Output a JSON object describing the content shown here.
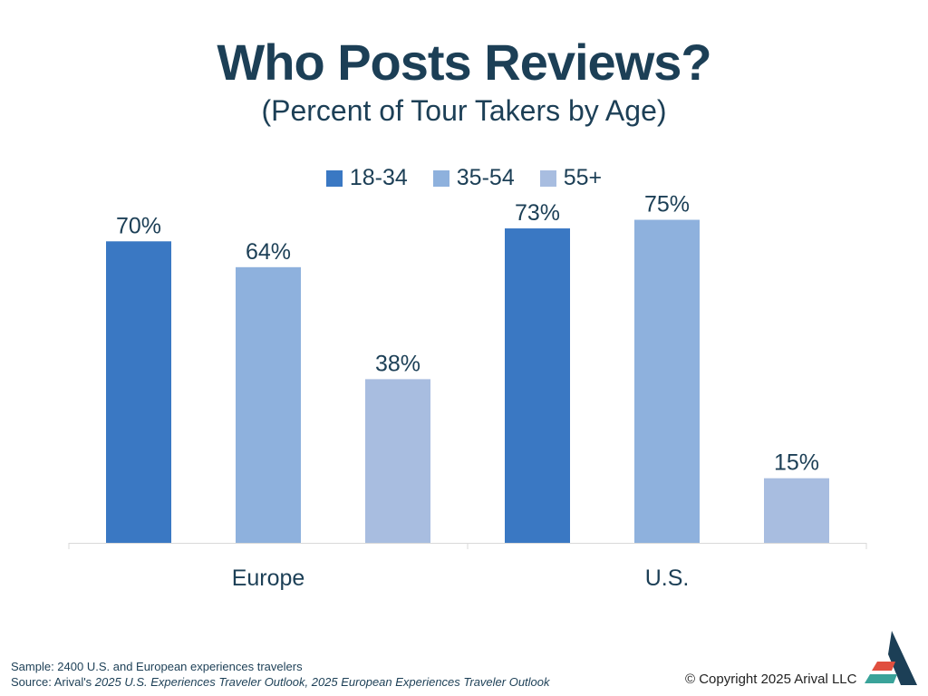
{
  "footer": {
    "sample": "Sample: 2400 U.S. and European experiences travelers",
    "source_prefix": "Source: Arival's ",
    "source_titles": "2025 U.S. Experiences Traveler Outlook, 2025 European Experiences Traveler Outlook",
    "copyright": "© Copyright 2025 Arival LLC"
  },
  "logo": {
    "icon": "arival-logo-icon",
    "colors": [
      "#1c3f56",
      "#e04f3f",
      "#3aa39a"
    ]
  },
  "colors": {
    "text": "#1c3f56",
    "axis": "#d9d9d9"
  },
  "chart_data": {
    "type": "bar",
    "title": "Who Posts Reviews?",
    "subtitle": "(Percent of Tour Takers by Age)",
    "categories": [
      "Europe",
      "U.S."
    ],
    "series": [
      {
        "name": "18-34",
        "values": [
          70,
          73
        ],
        "color": "#3a78c3"
      },
      {
        "name": "35-54",
        "values": [
          64,
          75
        ],
        "color": "#8eb1dd"
      },
      {
        "name": "55+",
        "values": [
          38,
          15
        ],
        "color": "#a8bde0"
      }
    ],
    "value_suffix": "%",
    "ylim": [
      0,
      85
    ],
    "grid": false,
    "legend_position": "top-center",
    "xlabel": "",
    "ylabel": ""
  }
}
